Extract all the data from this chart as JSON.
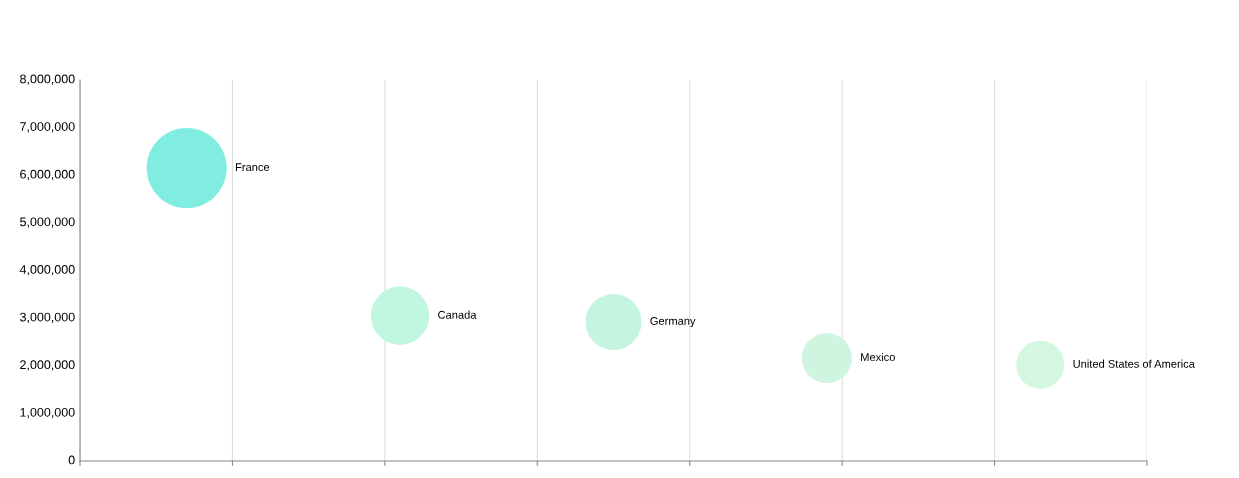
{
  "chart_data": {
    "type": "bubble",
    "categories": [
      "France",
      "Canada",
      "Germany",
      "Mexico",
      "United States of America"
    ],
    "ylim": [
      0,
      8000000
    ],
    "yticks": [
      0,
      {
        "value": 1000000,
        "label": "1,000,000"
      },
      {
        "value": 2000000,
        "label": "2,000,000"
      },
      {
        "value": 3000000,
        "label": "3,000,000"
      },
      {
        "value": 4000000,
        "label": "4,000,000"
      },
      {
        "value": 5000000,
        "label": "5,000,000"
      },
      {
        "value": 6000000,
        "label": "6,000,000"
      },
      {
        "value": 7000000,
        "label": "7,000,000"
      },
      {
        "value": 8000000,
        "label": "8,000,000"
      }
    ],
    "grid": "x",
    "tick_labels": "y",
    "series": [
      {
        "colors": [
          "#80ede0",
          "#c0f5e0",
          "#c4f5e0",
          "#cff5e0",
          "#d4f7e0"
        ],
        "values": [
          6150000,
          3050000,
          2920000,
          2160000,
          2020000
        ],
        "sizes": [
          1,
          0.53,
          0.49,
          0.39,
          0.36
        ]
      }
    ]
  }
}
